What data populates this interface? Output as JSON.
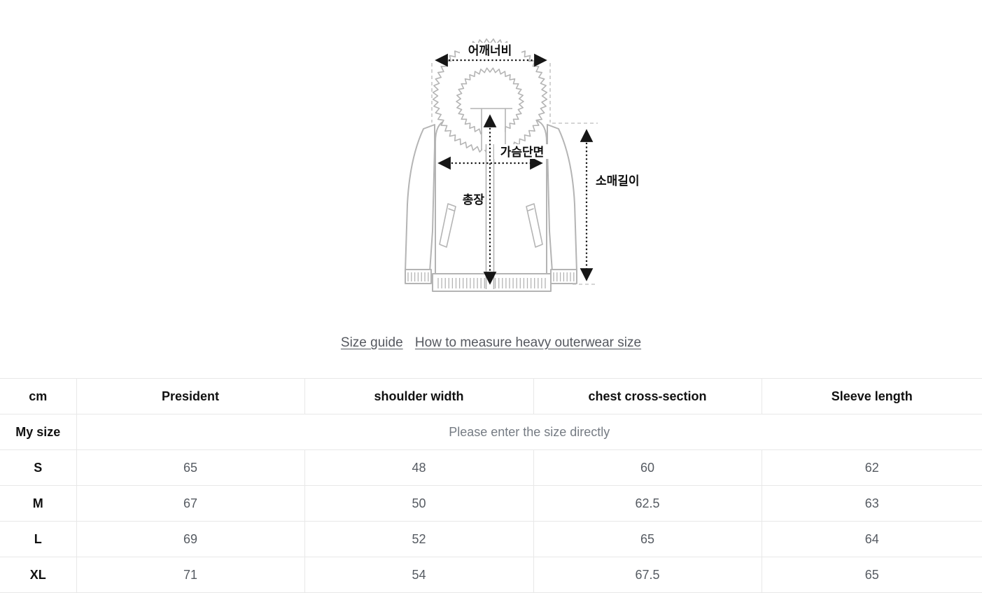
{
  "diagram": {
    "labels": {
      "shoulder_width": "어깨너비",
      "chest_section": "가슴단면",
      "total_length": "총장",
      "sleeve_length": "소매길이"
    }
  },
  "links": {
    "size_guide": "Size guide",
    "how_to_measure": "How to measure heavy outerwear size"
  },
  "table": {
    "headers": [
      "cm",
      "President",
      "shoulder width",
      "chest cross-section",
      "Sleeve length"
    ],
    "my_size_label": "My size",
    "my_size_placeholder": "Please enter the size directly",
    "rows": [
      {
        "size": "S",
        "values": [
          "65",
          "48",
          "60",
          "62"
        ]
      },
      {
        "size": "M",
        "values": [
          "67",
          "50",
          "62.5",
          "63"
        ]
      },
      {
        "size": "L",
        "values": [
          "69",
          "52",
          "65",
          "64"
        ]
      },
      {
        "size": "XL",
        "values": [
          "71",
          "54",
          "67.5",
          "65"
        ]
      }
    ]
  },
  "colors": {
    "link_text": "#55585f",
    "table_border": "#e8e8e8",
    "header_text": "#111111",
    "value_text": "#565b62",
    "placeholder_text": "#757b83",
    "jacket_outline": "#b4b4b4",
    "dimension_line": "#161616"
  }
}
